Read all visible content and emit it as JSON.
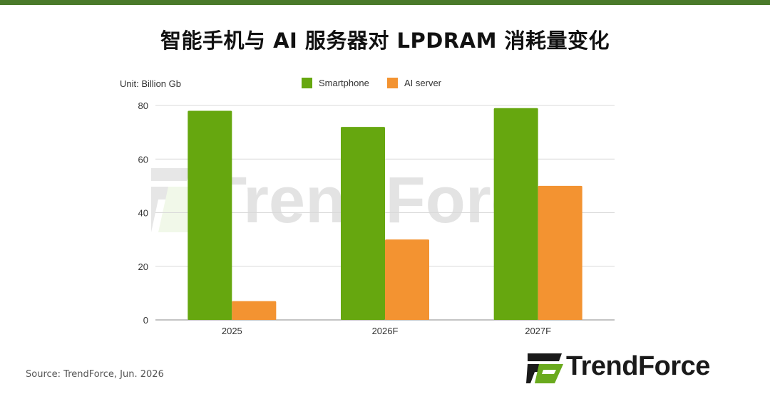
{
  "title": "智能手机与 AI 服务器对 LPDRAM 消耗量变化",
  "source": "Source: TrendForce, Jun. 2026",
  "brand": {
    "name": "TrendForce",
    "watermark_text": "TrendForce",
    "colors": {
      "dark": "#1a1a1a",
      "green": "#6aaa1e"
    }
  },
  "colors": {
    "top_bar": "#4a7a2a"
  },
  "chart_data": {
    "type": "bar",
    "unit_label": "Unit: Billion Gb",
    "categories": [
      "2025",
      "2026F",
      "2027F"
    ],
    "series": [
      {
        "name": "Smartphone",
        "color": "#66a70f",
        "values": [
          78,
          72,
          79
        ]
      },
      {
        "name": "AI server",
        "color": "#f39331",
        "values": [
          7,
          30,
          50
        ]
      }
    ],
    "ylim": [
      0,
      80
    ],
    "yticks": [
      0,
      20,
      40,
      60,
      80
    ],
    "grid": true,
    "legend_position": "top-center"
  }
}
